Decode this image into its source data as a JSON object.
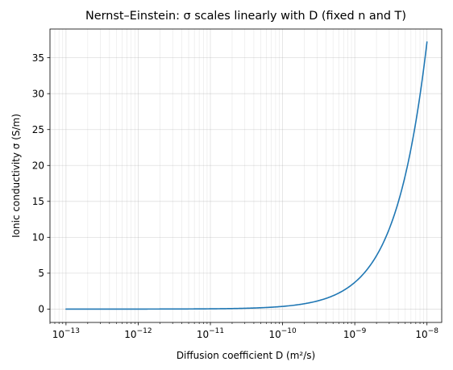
{
  "chart_data": {
    "type": "line",
    "title": "Nernst–Einstein: σ scales linearly with D (fixed n and T)",
    "xlabel": "Diffusion coefficient D (m²/s)",
    "ylabel": "Ionic conductivity σ (S/m)",
    "xscale": "log",
    "xlim": [
      6e-14,
      1.6e-08
    ],
    "ylim": [
      -1.86,
      39.0
    ],
    "grid": true,
    "x_ticks": [
      {
        "value": 1e-13,
        "base": "10",
        "exp": "−13"
      },
      {
        "value": 1e-12,
        "base": "10",
        "exp": "−12"
      },
      {
        "value": 1e-11,
        "base": "10",
        "exp": "−11"
      },
      {
        "value": 1e-10,
        "base": "10",
        "exp": "−10"
      },
      {
        "value": 1e-09,
        "base": "10",
        "exp": "−9"
      },
      {
        "value": 1e-08,
        "base": "10",
        "exp": "−8"
      }
    ],
    "y_ticks": [
      0,
      5,
      10,
      15,
      20,
      25,
      30,
      35
    ],
    "series": [
      {
        "color": "#1f77b4",
        "relation": "linear",
        "x": [
          1e-13,
          1e-08
        ],
        "y": [
          0.000372,
          37.2
        ]
      }
    ]
  }
}
